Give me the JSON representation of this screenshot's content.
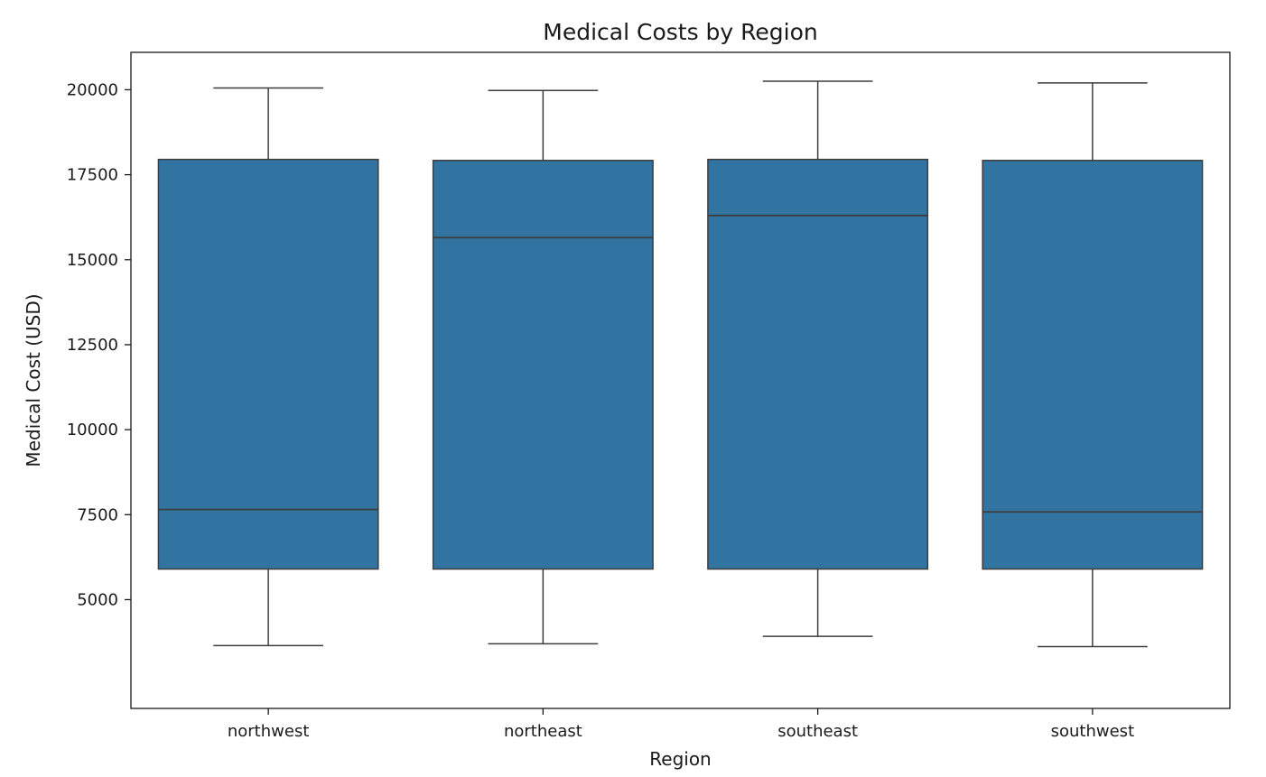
{
  "chart_data": {
    "type": "box",
    "title": "Medical Costs by Region",
    "xlabel": "Region",
    "ylabel": "Medical Cost (USD)",
    "categories": [
      "northwest",
      "northeast",
      "southeast",
      "southwest"
    ],
    "boxes": [
      {
        "name": "northwest",
        "whislo": 3650,
        "q1": 5900,
        "med": 7650,
        "q3": 17950,
        "whishi": 20050
      },
      {
        "name": "northeast",
        "whislo": 3700,
        "q1": 5900,
        "med": 15650,
        "q3": 17920,
        "whishi": 19980
      },
      {
        "name": "southeast",
        "whislo": 3920,
        "q1": 5900,
        "med": 16300,
        "q3": 17950,
        "whishi": 20250
      },
      {
        "name": "southwest",
        "whislo": 3620,
        "q1": 5900,
        "med": 7580,
        "q3": 17920,
        "whishi": 20200
      }
    ],
    "ylim": [
      1800,
      21100
    ],
    "yticks": [
      5000,
      7500,
      10000,
      12500,
      15000,
      17500,
      20000
    ],
    "box_color": "#3274a1",
    "line_color": "#3d3d3d",
    "grid": false,
    "legend": "none"
  }
}
